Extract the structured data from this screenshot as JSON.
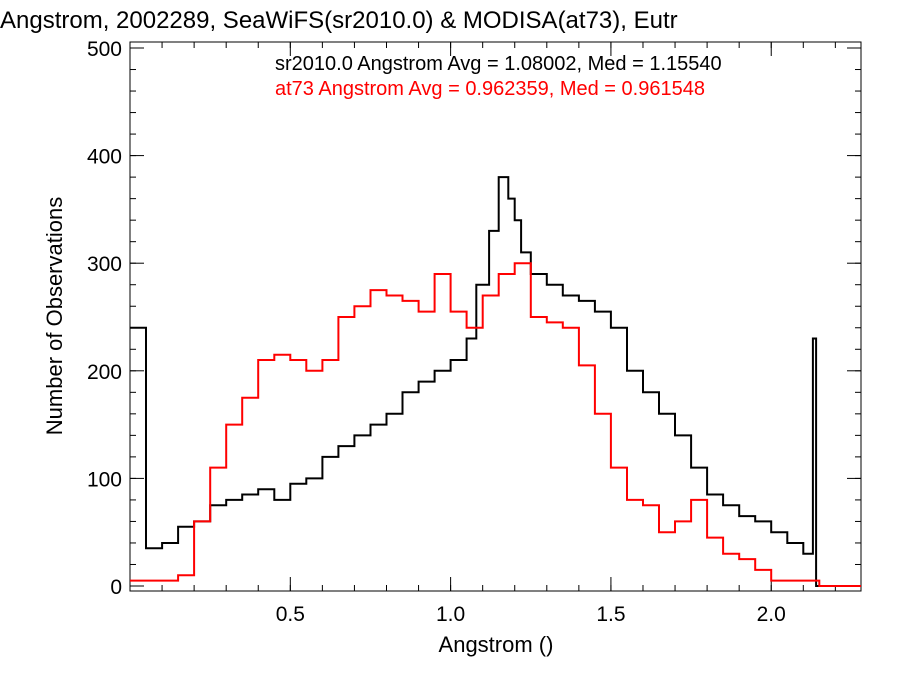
{
  "chart_data": {
    "type": "line",
    "title": "Angstrom, 2002289, SeaWiFS(sr2010.0) & MODISA(at73), Eutr",
    "xlabel": "Angstrom ()",
    "ylabel": "Number of Observations",
    "xlim": [
      0.0,
      2.28
    ],
    "ylim": [
      0,
      500
    ],
    "x_ticks": [
      0.5,
      1.0,
      1.5,
      2.0
    ],
    "x_tick_labels": [
      "0.5",
      "1.0",
      "1.5",
      "2.0"
    ],
    "y_ticks": [
      0,
      100,
      200,
      300,
      400,
      500
    ],
    "y_tick_labels": [
      "0",
      "100",
      "200",
      "300",
      "400",
      "500"
    ],
    "grid": false,
    "legend": "top-right",
    "annotations": [
      {
        "text": "sr2010.0 Angstrom Avg = 1.08002, Med = 1.15540",
        "color": "#000000"
      },
      {
        "text": "at73 Angstrom Avg = 0.962359, Med = 0.961548",
        "color": "#ff0000"
      }
    ],
    "series": [
      {
        "color": "#000000",
        "style": "step",
        "x": [
          0.0,
          0.05,
          0.1,
          0.15,
          0.2,
          0.25,
          0.3,
          0.35,
          0.4,
          0.45,
          0.5,
          0.55,
          0.6,
          0.65,
          0.7,
          0.75,
          0.8,
          0.85,
          0.9,
          0.95,
          1.0,
          1.05,
          1.08,
          1.12,
          1.15,
          1.18,
          1.2,
          1.22,
          1.25,
          1.3,
          1.35,
          1.4,
          1.45,
          1.5,
          1.55,
          1.6,
          1.65,
          1.7,
          1.75,
          1.8,
          1.85,
          1.9,
          1.95,
          2.0,
          2.05,
          2.1,
          2.13,
          2.14,
          2.15,
          2.28
        ],
        "y": [
          240,
          35,
          40,
          55,
          60,
          75,
          80,
          85,
          90,
          80,
          95,
          100,
          120,
          130,
          140,
          150,
          160,
          180,
          190,
          200,
          210,
          230,
          280,
          330,
          380,
          360,
          340,
          310,
          290,
          280,
          270,
          265,
          255,
          240,
          200,
          180,
          160,
          140,
          110,
          85,
          75,
          65,
          60,
          50,
          40,
          30,
          230,
          0,
          0,
          0
        ]
      },
      {
        "color": "#ff0000",
        "style": "step",
        "x": [
          0.0,
          0.05,
          0.1,
          0.15,
          0.2,
          0.25,
          0.3,
          0.35,
          0.4,
          0.45,
          0.5,
          0.55,
          0.6,
          0.65,
          0.7,
          0.75,
          0.8,
          0.85,
          0.9,
          0.95,
          1.0,
          1.05,
          1.1,
          1.15,
          1.2,
          1.25,
          1.3,
          1.35,
          1.4,
          1.45,
          1.5,
          1.55,
          1.6,
          1.65,
          1.7,
          1.75,
          1.8,
          1.85,
          1.9,
          1.95,
          2.0,
          2.05,
          2.1,
          2.15,
          2.28
        ],
        "y": [
          5,
          5,
          5,
          10,
          60,
          110,
          150,
          175,
          210,
          215,
          210,
          200,
          210,
          250,
          260,
          275,
          270,
          265,
          255,
          290,
          255,
          240,
          270,
          290,
          300,
          250,
          245,
          240,
          205,
          160,
          110,
          80,
          75,
          50,
          60,
          80,
          45,
          30,
          25,
          15,
          5,
          5,
          5,
          0,
          0
        ]
      }
    ]
  }
}
